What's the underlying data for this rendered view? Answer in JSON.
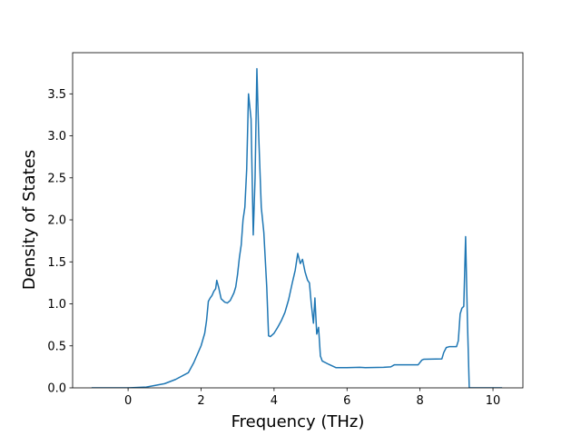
{
  "chart_data": {
    "type": "line",
    "xlabel": "Frequency (THz)",
    "ylabel": "Density of States",
    "color": "#1f77b4",
    "x": [
      -1,
      0,
      0.5,
      1,
      1.3,
      1.65,
      1.8,
      2.0,
      2.1,
      2.15,
      2.2,
      2.25,
      2.3,
      2.35,
      2.4,
      2.43,
      2.48,
      2.55,
      2.65,
      2.72,
      2.8,
      2.9,
      2.95,
      3.0,
      3.05,
      3.1,
      3.15,
      3.2,
      3.25,
      3.3,
      3.37,
      3.43,
      3.48,
      3.53,
      3.58,
      3.65,
      3.72,
      3.8,
      3.85,
      3.9,
      4.0,
      4.1,
      4.2,
      4.3,
      4.4,
      4.5,
      4.58,
      4.65,
      4.72,
      4.78,
      4.85,
      4.92,
      4.97,
      5.02,
      5.08,
      5.12,
      5.17,
      5.22,
      5.27,
      5.32,
      5.5,
      5.7,
      6.0,
      6.35,
      6.5,
      7.0,
      7.2,
      7.3,
      7.5,
      7.95,
      8.05,
      8.1,
      8.6,
      8.65,
      8.72,
      8.8,
      9.0,
      9.05,
      9.1,
      9.15,
      9.2,
      9.25,
      9.3,
      9.35,
      9.8,
      10.25
    ],
    "values": [
      0,
      0,
      0.01,
      0.05,
      0.1,
      0.18,
      0.3,
      0.5,
      0.65,
      0.8,
      1.03,
      1.07,
      1.1,
      1.15,
      1.18,
      1.28,
      1.2,
      1.06,
      1.02,
      1.01,
      1.04,
      1.13,
      1.2,
      1.35,
      1.55,
      1.7,
      2.0,
      2.15,
      2.6,
      3.5,
      3.2,
      1.82,
      2.5,
      3.8,
      3.0,
      2.15,
      1.85,
      1.2,
      0.62,
      0.61,
      0.65,
      0.72,
      0.8,
      0.9,
      1.05,
      1.25,
      1.4,
      1.6,
      1.48,
      1.53,
      1.38,
      1.28,
      1.25,
      1.0,
      0.77,
      1.07,
      0.64,
      0.72,
      0.38,
      0.32,
      0.28,
      0.24,
      0.24,
      0.245,
      0.24,
      0.245,
      0.25,
      0.275,
      0.275,
      0.275,
      0.33,
      0.34,
      0.345,
      0.42,
      0.48,
      0.49,
      0.49,
      0.56,
      0.88,
      0.95,
      0.97,
      1.8,
      0.8,
      0,
      0,
      0
    ],
    "xlim": [
      -1.52,
      10.82
    ],
    "ylim": [
      0,
      3.99
    ],
    "xticks": [
      0,
      2,
      4,
      6,
      8,
      10
    ],
    "yticks": [
      {
        "value": 0,
        "label": "0.0"
      },
      0.5,
      {
        "value": 1,
        "label": "1.0"
      },
      1.5,
      {
        "value": 2,
        "label": "2.0"
      },
      2.5,
      {
        "value": 3,
        "label": "3.0"
      },
      3.5
    ]
  }
}
